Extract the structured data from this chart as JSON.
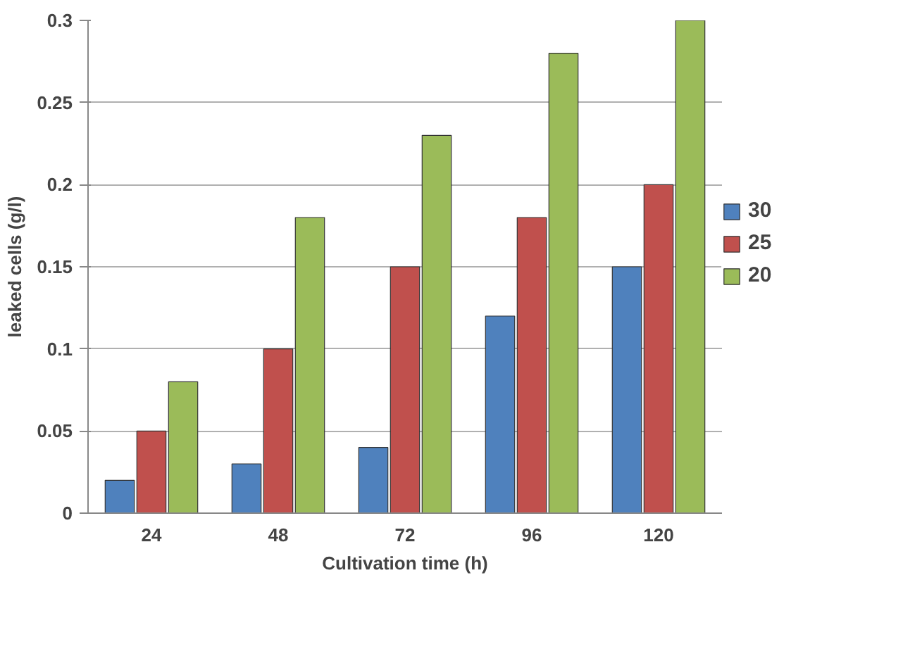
{
  "chart_data": {
    "type": "bar",
    "xlabel": "Cultivation time (h)",
    "ylabel": "leaked cells (g/l)",
    "categories": [
      "24",
      "48",
      "72",
      "96",
      "120"
    ],
    "series": [
      {
        "name": "30",
        "color": "#4f81bd",
        "values": [
          0.02,
          0.03,
          0.04,
          0.12,
          0.15
        ]
      },
      {
        "name": "25",
        "color": "#c0504d",
        "values": [
          0.05,
          0.1,
          0.15,
          0.18,
          0.2
        ]
      },
      {
        "name": "20",
        "color": "#9bbb59",
        "values": [
          0.08,
          0.18,
          0.23,
          0.28,
          0.3
        ]
      }
    ],
    "ylim": [
      0,
      0.3
    ],
    "yticks": [
      0,
      0.05,
      0.1,
      0.15,
      0.2,
      0.25,
      0.3
    ],
    "grid": "y",
    "legend": "right"
  }
}
